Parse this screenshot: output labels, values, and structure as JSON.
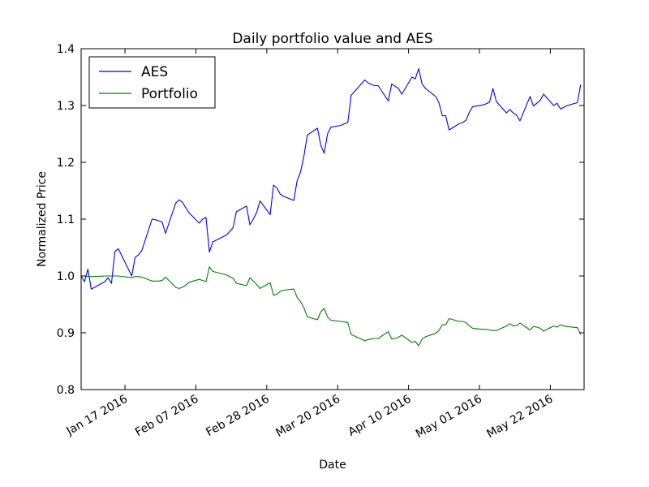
{
  "chart_data": {
    "type": "line",
    "title": "Daily portfolio value and AES",
    "xlabel": "Date",
    "ylabel": "Normalized Price",
    "xlim": [
      "2016-01-04",
      "2016-06-01"
    ],
    "ylim": [
      0.8,
      1.4
    ],
    "yticks": [
      0.8,
      0.9,
      1.0,
      1.1,
      1.2,
      1.3,
      1.4
    ],
    "xticks": [
      {
        "date": "2016-01-17",
        "label": "Jan 17 2016"
      },
      {
        "date": "2016-02-07",
        "label": "Feb 07 2016"
      },
      {
        "date": "2016-02-28",
        "label": "Feb 28 2016"
      },
      {
        "date": "2016-03-20",
        "label": "Mar 20 2016"
      },
      {
        "date": "2016-04-10",
        "label": "Apr 10 2016"
      },
      {
        "date": "2016-05-01",
        "label": "May 01 2016"
      },
      {
        "date": "2016-05-22",
        "label": "May 22 2016"
      }
    ],
    "grid": false,
    "legend_position": "top-left",
    "series": [
      {
        "name": "AES",
        "color": "#0000ff",
        "points": [
          [
            "2016-01-04",
            1.0
          ],
          [
            "2016-01-05",
            0.99
          ],
          [
            "2016-01-06",
            1.012
          ],
          [
            "2016-01-07",
            0.977
          ],
          [
            "2016-01-08",
            0.98
          ],
          [
            "2016-01-11",
            0.99
          ],
          [
            "2016-01-12",
            0.997
          ],
          [
            "2016-01-13",
            0.987
          ],
          [
            "2016-01-14",
            1.043
          ],
          [
            "2016-01-15",
            1.048
          ],
          [
            "2016-01-19",
            1.0
          ],
          [
            "2016-01-20",
            1.033
          ],
          [
            "2016-01-21",
            1.037
          ],
          [
            "2016-01-22",
            1.045
          ],
          [
            "2016-01-25",
            1.1
          ],
          [
            "2016-01-26",
            1.099
          ],
          [
            "2016-01-27",
            1.097
          ],
          [
            "2016-01-28",
            1.095
          ],
          [
            "2016-01-29",
            1.075
          ],
          [
            "2016-02-01",
            1.128
          ],
          [
            "2016-02-02",
            1.134
          ],
          [
            "2016-02-03",
            1.13
          ],
          [
            "2016-02-04",
            1.12
          ],
          [
            "2016-02-05",
            1.111
          ],
          [
            "2016-02-08",
            1.093
          ],
          [
            "2016-02-09",
            1.1
          ],
          [
            "2016-02-10",
            1.103
          ],
          [
            "2016-02-11",
            1.042
          ],
          [
            "2016-02-12",
            1.06
          ],
          [
            "2016-02-16",
            1.072
          ],
          [
            "2016-02-17",
            1.078
          ],
          [
            "2016-02-18",
            1.085
          ],
          [
            "2016-02-19",
            1.113
          ],
          [
            "2016-02-22",
            1.123
          ],
          [
            "2016-02-23",
            1.09
          ],
          [
            "2016-02-24",
            1.1
          ],
          [
            "2016-02-25",
            1.112
          ],
          [
            "2016-02-26",
            1.132
          ],
          [
            "2016-02-29",
            1.108
          ],
          [
            "2016-03-01",
            1.16
          ],
          [
            "2016-03-02",
            1.155
          ],
          [
            "2016-03-03",
            1.144
          ],
          [
            "2016-03-04",
            1.14
          ],
          [
            "2016-03-07",
            1.133
          ],
          [
            "2016-03-08",
            1.168
          ],
          [
            "2016-03-09",
            1.183
          ],
          [
            "2016-03-10",
            1.211
          ],
          [
            "2016-03-11",
            1.248
          ],
          [
            "2016-03-14",
            1.26
          ],
          [
            "2016-03-15",
            1.23
          ],
          [
            "2016-03-16",
            1.216
          ],
          [
            "2016-03-17",
            1.25
          ],
          [
            "2016-03-18",
            1.262
          ],
          [
            "2016-03-21",
            1.265
          ],
          [
            "2016-03-22",
            1.268
          ],
          [
            "2016-03-23",
            1.27
          ],
          [
            "2016-03-24",
            1.318
          ],
          [
            "2016-03-28",
            1.345
          ],
          [
            "2016-03-29",
            1.34
          ],
          [
            "2016-03-30",
            1.337
          ],
          [
            "2016-03-31",
            1.335
          ],
          [
            "2016-04-01",
            1.335
          ],
          [
            "2016-04-04",
            1.308
          ],
          [
            "2016-04-05",
            1.338
          ],
          [
            "2016-04-06",
            1.334
          ],
          [
            "2016-04-07",
            1.33
          ],
          [
            "2016-04-08",
            1.32
          ],
          [
            "2016-04-11",
            1.35
          ],
          [
            "2016-04-12",
            1.347
          ],
          [
            "2016-04-13",
            1.365
          ],
          [
            "2016-04-14",
            1.338
          ],
          [
            "2016-04-15",
            1.33
          ],
          [
            "2016-04-18",
            1.316
          ],
          [
            "2016-04-19",
            1.305
          ],
          [
            "2016-04-20",
            1.282
          ],
          [
            "2016-04-21",
            1.282
          ],
          [
            "2016-04-22",
            1.257
          ],
          [
            "2016-04-25",
            1.268
          ],
          [
            "2016-04-26",
            1.27
          ],
          [
            "2016-04-27",
            1.274
          ],
          [
            "2016-04-28",
            1.288
          ],
          [
            "2016-04-29",
            1.298
          ],
          [
            "2016-05-02",
            1.301
          ],
          [
            "2016-05-03",
            1.303
          ],
          [
            "2016-05-04",
            1.306
          ],
          [
            "2016-05-05",
            1.33
          ],
          [
            "2016-05-06",
            1.307
          ],
          [
            "2016-05-09",
            1.287
          ],
          [
            "2016-05-10",
            1.293
          ],
          [
            "2016-05-11",
            1.287
          ],
          [
            "2016-05-12",
            1.283
          ],
          [
            "2016-05-13",
            1.273
          ],
          [
            "2016-05-16",
            1.316
          ],
          [
            "2016-05-17",
            1.299
          ],
          [
            "2016-05-18",
            1.304
          ],
          [
            "2016-05-19",
            1.309
          ],
          [
            "2016-05-20",
            1.32
          ],
          [
            "2016-05-23",
            1.3
          ],
          [
            "2016-05-24",
            1.304
          ],
          [
            "2016-05-25",
            1.294
          ],
          [
            "2016-05-26",
            1.297
          ],
          [
            "2016-05-27",
            1.3
          ],
          [
            "2016-05-30",
            1.305
          ],
          [
            "2016-05-31",
            1.337
          ]
        ]
      },
      {
        "name": "Portfolio",
        "color": "#008000",
        "points": [
          [
            "2016-01-04",
            1.0
          ],
          [
            "2016-01-05",
            1.0
          ],
          [
            "2016-01-06",
            0.999
          ],
          [
            "2016-01-07",
            0.999
          ],
          [
            "2016-01-08",
            0.999
          ],
          [
            "2016-01-11",
            1.0
          ],
          [
            "2016-01-12",
            1.0
          ],
          [
            "2016-01-13",
            1.0
          ],
          [
            "2016-01-14",
            1.0
          ],
          [
            "2016-01-15",
            1.0
          ],
          [
            "2016-01-19",
            0.997
          ],
          [
            "2016-01-20",
            0.999
          ],
          [
            "2016-01-21",
            0.999
          ],
          [
            "2016-01-22",
            0.998
          ],
          [
            "2016-01-25",
            0.991
          ],
          [
            "2016-01-26",
            0.991
          ],
          [
            "2016-01-27",
            0.991
          ],
          [
            "2016-01-28",
            0.992
          ],
          [
            "2016-01-29",
            0.998
          ],
          [
            "2016-02-01",
            0.98
          ],
          [
            "2016-02-02",
            0.978
          ],
          [
            "2016-02-03",
            0.98
          ],
          [
            "2016-02-04",
            0.984
          ],
          [
            "2016-02-05",
            0.989
          ],
          [
            "2016-02-08",
            0.994
          ],
          [
            "2016-02-09",
            0.992
          ],
          [
            "2016-02-10",
            0.99
          ],
          [
            "2016-02-11",
            1.016
          ],
          [
            "2016-02-12",
            1.008
          ],
          [
            "2016-02-16",
            1.002
          ],
          [
            "2016-02-17",
            0.999
          ],
          [
            "2016-02-18",
            0.996
          ],
          [
            "2016-02-19",
            0.987
          ],
          [
            "2016-02-22",
            0.983
          ],
          [
            "2016-02-23",
            0.997
          ],
          [
            "2016-02-24",
            0.991
          ],
          [
            "2016-02-25",
            0.985
          ],
          [
            "2016-02-26",
            0.978
          ],
          [
            "2016-02-29",
            0.988
          ],
          [
            "2016-03-01",
            0.966
          ],
          [
            "2016-03-02",
            0.968
          ],
          [
            "2016-03-03",
            0.973
          ],
          [
            "2016-03-04",
            0.975
          ],
          [
            "2016-03-07",
            0.977
          ],
          [
            "2016-03-08",
            0.962
          ],
          [
            "2016-03-09",
            0.955
          ],
          [
            "2016-03-10",
            0.944
          ],
          [
            "2016-03-11",
            0.928
          ],
          [
            "2016-03-14",
            0.923
          ],
          [
            "2016-03-15",
            0.937
          ],
          [
            "2016-03-16",
            0.943
          ],
          [
            "2016-03-17",
            0.928
          ],
          [
            "2016-03-18",
            0.922
          ],
          [
            "2016-03-21",
            0.92
          ],
          [
            "2016-03-22",
            0.919
          ],
          [
            "2016-03-23",
            0.918
          ],
          [
            "2016-03-24",
            0.897
          ],
          [
            "2016-03-28",
            0.886
          ],
          [
            "2016-03-29",
            0.888
          ],
          [
            "2016-03-30",
            0.889
          ],
          [
            "2016-03-31",
            0.89
          ],
          [
            "2016-04-01",
            0.89
          ],
          [
            "2016-04-04",
            0.902
          ],
          [
            "2016-04-05",
            0.889
          ],
          [
            "2016-04-06",
            0.89
          ],
          [
            "2016-04-07",
            0.892
          ],
          [
            "2016-04-08",
            0.896
          ],
          [
            "2016-04-11",
            0.883
          ],
          [
            "2016-04-12",
            0.885
          ],
          [
            "2016-04-13",
            0.877
          ],
          [
            "2016-04-14",
            0.889
          ],
          [
            "2016-04-15",
            0.893
          ],
          [
            "2016-04-18",
            0.899
          ],
          [
            "2016-04-19",
            0.904
          ],
          [
            "2016-04-20",
            0.914
          ],
          [
            "2016-04-21",
            0.914
          ],
          [
            "2016-04-22",
            0.925
          ],
          [
            "2016-04-25",
            0.92
          ],
          [
            "2016-04-26",
            0.92
          ],
          [
            "2016-04-27",
            0.918
          ],
          [
            "2016-04-28",
            0.912
          ],
          [
            "2016-04-29",
            0.908
          ],
          [
            "2016-05-02",
            0.906
          ],
          [
            "2016-05-03",
            0.906
          ],
          [
            "2016-05-04",
            0.905
          ],
          [
            "2016-05-05",
            0.904
          ],
          [
            "2016-05-06",
            0.904
          ],
          [
            "2016-05-09",
            0.912
          ],
          [
            "2016-05-10",
            0.916
          ],
          [
            "2016-05-11",
            0.912
          ],
          [
            "2016-05-12",
            0.913
          ],
          [
            "2016-05-13",
            0.917
          ],
          [
            "2016-05-16",
            0.905
          ],
          [
            "2016-05-17",
            0.911
          ],
          [
            "2016-05-18",
            0.91
          ],
          [
            "2016-05-19",
            0.908
          ],
          [
            "2016-05-20",
            0.903
          ],
          [
            "2016-05-23",
            0.912
          ],
          [
            "2016-05-24",
            0.91
          ],
          [
            "2016-05-25",
            0.914
          ],
          [
            "2016-05-26",
            0.912
          ],
          [
            "2016-05-27",
            0.911
          ],
          [
            "2016-05-30",
            0.909
          ],
          [
            "2016-05-31",
            0.897
          ]
        ]
      }
    ]
  }
}
